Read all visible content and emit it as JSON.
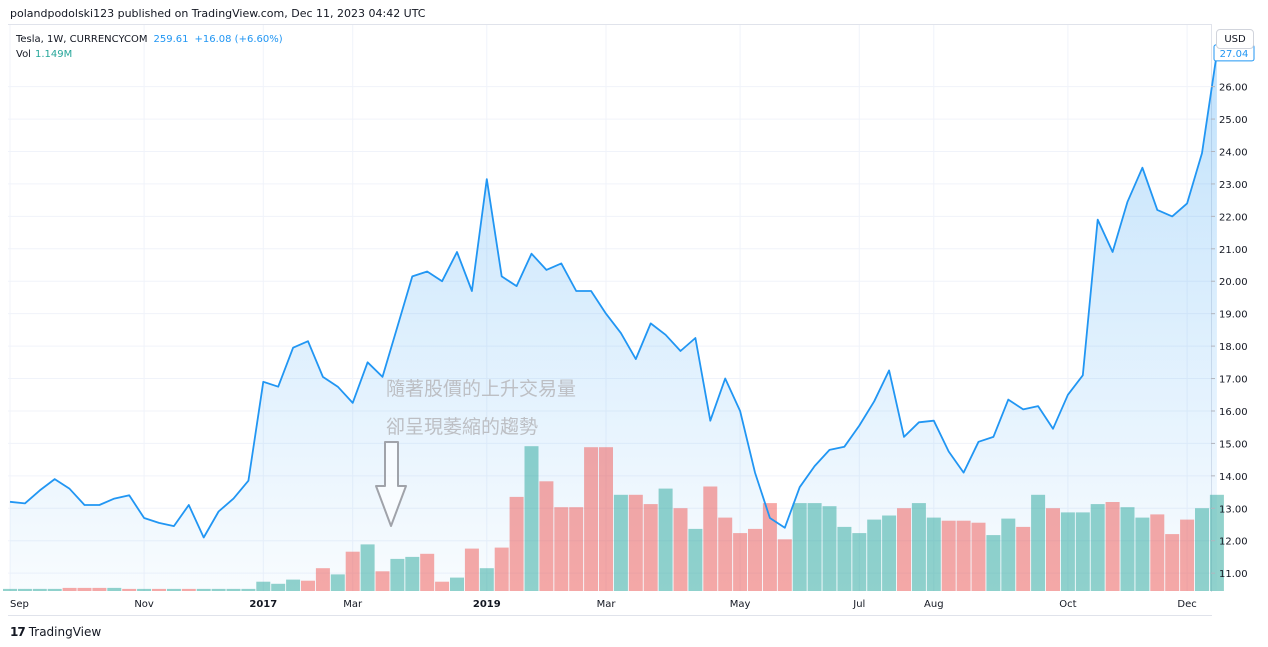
{
  "header": {
    "publisher_line": "polandpodolski123 published on TradingView.com, Dec 11, 2023 04:42 UTC"
  },
  "legend": {
    "symbol": "Tesla, 1W, CURRENCYCOM",
    "price": "259.61",
    "change": "+16.08 (+6.60%)",
    "volume_label": "Vol",
    "volume_value": "1.149M"
  },
  "currency_button": "USD",
  "brand": {
    "logo_glyph": "17",
    "name": "TradingView"
  },
  "annotation": {
    "line1": "隨著股價的上升交易量",
    "line2": "卻呈現萎縮的趨勢"
  },
  "colors": {
    "line": "#2196f3",
    "area_fill": "#2196f3",
    "volume_up": "#26a69a",
    "volume_down": "#ef5350",
    "price_tag": "#2196f3"
  },
  "chart_data": {
    "type": "line",
    "price_axis": {
      "ticks": [
        11,
        12,
        13,
        14,
        15,
        16,
        17,
        18,
        19,
        20,
        21,
        22,
        23,
        24,
        25,
        26
      ],
      "tick_labels": [
        "11.00",
        "12.00",
        "13.00",
        "14.00",
        "15.00",
        "16.00",
        "17.00",
        "18.00",
        "19.00",
        "20.00",
        "21.00",
        "22.00",
        "23.00",
        "24.00",
        "25.00",
        "26.00"
      ],
      "ylim": [
        10.45,
        27.9
      ],
      "last_value_label": "27.04",
      "last_value": 27.04
    },
    "time_axis": {
      "labels": [
        {
          "text": "Sep",
          "index": 0,
          "bold": false
        },
        {
          "text": "Nov",
          "index": 9,
          "bold": false
        },
        {
          "text": "2017",
          "index": 17,
          "bold": true
        },
        {
          "text": "Mar",
          "index": 23,
          "bold": false
        },
        {
          "text": "2019",
          "index": 32,
          "bold": true
        },
        {
          "text": "Mar",
          "index": 40,
          "bold": false
        },
        {
          "text": "May",
          "index": 49,
          "bold": false
        },
        {
          "text": "Jul",
          "index": 57,
          "bold": false
        },
        {
          "text": "Aug",
          "index": 62,
          "bold": false
        },
        {
          "text": "Oct",
          "index": 71,
          "bold": false
        },
        {
          "text": "Dec",
          "index": 79,
          "bold": false
        }
      ]
    },
    "series": [
      {
        "values": [
          13.2,
          13.15,
          13.55,
          13.9,
          13.6,
          13.1,
          13.1,
          13.3,
          13.4,
          12.7,
          12.55,
          12.45,
          13.1,
          12.1,
          12.9,
          13.3,
          13.85,
          16.9,
          16.75,
          17.95,
          18.15,
          17.05,
          16.75,
          16.25,
          17.5,
          17.05,
          18.6,
          20.15,
          20.3,
          20.0,
          20.9,
          19.7,
          23.15,
          20.15,
          19.85,
          20.85,
          20.35,
          20.55,
          19.7,
          19.7,
          19.0,
          18.4,
          17.6,
          18.7,
          18.35,
          17.85,
          18.25,
          15.7,
          17.0,
          16.0,
          14.1,
          12.7,
          12.4,
          13.65,
          14.3,
          14.8,
          14.9,
          15.55,
          16.3,
          17.25,
          15.2,
          15.65,
          15.7,
          14.75,
          14.1,
          15.05,
          15.2,
          16.35,
          16.05,
          16.15,
          15.45,
          16.5,
          17.1,
          21.9,
          20.9,
          22.45,
          23.5,
          22.2,
          22.0,
          22.4,
          23.95,
          27.04
        ]
      }
    ],
    "volume": {
      "values": [
        0.02,
        0.02,
        0.02,
        0.02,
        0.03,
        0.03,
        0.03,
        0.03,
        0.02,
        0.02,
        0.02,
        0.02,
        0.02,
        0.02,
        0.02,
        0.02,
        0.02,
        0.09,
        0.07,
        0.11,
        0.1,
        0.22,
        0.16,
        0.38,
        0.45,
        0.19,
        0.31,
        0.33,
        0.36,
        0.09,
        0.13,
        0.41,
        0.22,
        0.42,
        0.91,
        1.4,
        1.06,
        0.81,
        0.81,
        1.39,
        1.39,
        0.93,
        0.93,
        0.84,
        0.99,
        0.8,
        0.6,
        1.01,
        0.71,
        0.56,
        0.6,
        0.85,
        0.5,
        0.85,
        0.85,
        0.82,
        0.62,
        0.56,
        0.69,
        0.73,
        0.8,
        0.85,
        0.71,
        0.68,
        0.68,
        0.66,
        0.54,
        0.7,
        0.62,
        0.93,
        0.8,
        0.76,
        0.76,
        0.84,
        0.86,
        0.81,
        0.71,
        0.74,
        0.55,
        0.69,
        0.8,
        0.93
      ],
      "direction": [
        "up",
        "up",
        "up",
        "up",
        "down",
        "down",
        "down",
        "up",
        "down",
        "up",
        "down",
        "up",
        "down",
        "up",
        "up",
        "up",
        "up",
        "up",
        "up",
        "up",
        "down",
        "down",
        "up",
        "down",
        "up",
        "down",
        "up",
        "up",
        "down",
        "down",
        "up",
        "down",
        "up",
        "down",
        "down",
        "up",
        "down",
        "down",
        "down",
        "down",
        "down",
        "up",
        "down",
        "down",
        "up",
        "down",
        "up",
        "down",
        "down",
        "down",
        "down",
        "down",
        "down",
        "up",
        "up",
        "up",
        "up",
        "up",
        "up",
        "up",
        "down",
        "up",
        "up",
        "down",
        "down",
        "down",
        "up",
        "up",
        "down",
        "up",
        "down",
        "up",
        "up",
        "up",
        "down",
        "up",
        "up",
        "down",
        "down",
        "down",
        "up",
        "up"
      ],
      "ylim": [
        0,
        1.45
      ]
    },
    "legend_placement": "top-left",
    "grid": true
  }
}
